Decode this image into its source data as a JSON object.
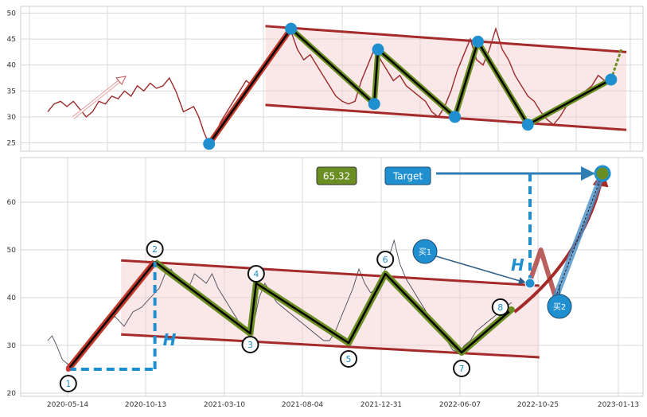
{
  "chart_data": [
    {
      "type": "line",
      "title": "",
      "xlabel": "",
      "ylabel": "",
      "ylim": [
        24,
        51
      ],
      "yticks": [
        25,
        30,
        35,
        40,
        45,
        50
      ],
      "grid": true,
      "series": [
        {
          "role": "price",
          "color": "#9b2b2b",
          "points": [
            [
              0,
              31
            ],
            [
              5,
              32.5
            ],
            [
              10,
              33
            ],
            [
              15,
              32
            ],
            [
              20,
              33
            ],
            [
              25,
              31.5
            ],
            [
              30,
              30
            ],
            [
              35,
              31
            ],
            [
              40,
              33
            ],
            [
              45,
              32.5
            ],
            [
              50,
              34
            ],
            [
              55,
              33.5
            ],
            [
              60,
              35
            ],
            [
              65,
              34
            ],
            [
              70,
              36
            ],
            [
              75,
              35
            ],
            [
              80,
              36.5
            ],
            [
              85,
              35.5
            ],
            [
              90,
              36
            ],
            [
              95,
              37.5
            ],
            [
              100,
              35
            ],
            [
              103,
              33
            ],
            [
              106,
              31
            ],
            [
              110,
              31.5
            ],
            [
              114,
              32
            ],
            [
              118,
              30
            ],
            [
              122,
              27
            ],
            [
              126,
              24.8
            ],
            [
              130,
              26
            ],
            [
              135,
              29
            ],
            [
              140,
              31
            ],
            [
              145,
              33
            ],
            [
              150,
              35
            ],
            [
              155,
              37
            ],
            [
              160,
              36
            ],
            [
              165,
              38
            ],
            [
              170,
              40
            ],
            [
              175,
              42
            ],
            [
              180,
              44
            ],
            [
              185,
              46
            ],
            [
              190,
              46.5
            ],
            [
              195,
              43
            ],
            [
              200,
              41
            ],
            [
              205,
              42
            ],
            [
              210,
              40
            ],
            [
              215,
              38
            ],
            [
              220,
              36
            ],
            [
              225,
              34
            ],
            [
              230,
              33
            ],
            [
              235,
              32.5
            ],
            [
              240,
              33
            ],
            [
              245,
              37
            ],
            [
              250,
              40
            ],
            [
              255,
              43
            ],
            [
              260,
              41
            ],
            [
              265,
              39
            ],
            [
              270,
              37
            ],
            [
              275,
              38
            ],
            [
              280,
              36
            ],
            [
              285,
              35
            ],
            [
              290,
              34
            ],
            [
              295,
              33
            ],
            [
              300,
              31
            ],
            [
              305,
              30
            ],
            [
              310,
              32
            ],
            [
              315,
              35
            ],
            [
              320,
              39
            ],
            [
              325,
              42
            ],
            [
              330,
              45
            ],
            [
              335,
              41
            ],
            [
              340,
              40
            ],
            [
              345,
              43
            ],
            [
              350,
              47
            ],
            [
              355,
              43
            ],
            [
              360,
              41
            ],
            [
              365,
              38
            ],
            [
              370,
              36
            ],
            [
              375,
              34
            ],
            [
              380,
              33
            ],
            [
              385,
              31
            ],
            [
              390,
              29.5
            ],
            [
              395,
              28.5
            ],
            [
              400,
              30
            ],
            [
              405,
              32
            ],
            [
              410,
              33
            ],
            [
              415,
              34
            ],
            [
              420,
              35
            ],
            [
              425,
              36
            ],
            [
              430,
              38
            ],
            [
              435,
              37
            ],
            [
              440,
              37.2
            ]
          ]
        },
        {
          "role": "zigzag",
          "color": "#000000",
          "highlight_color": "#6b8e23",
          "points": [
            [
              126,
              24.8
            ],
            [
              190,
              47
            ],
            [
              255,
              32.5
            ],
            [
              258,
              43
            ],
            [
              318,
              30
            ],
            [
              336,
              44.5
            ],
            [
              375,
              28.5
            ],
            [
              440,
              37.2
            ]
          ]
        },
        {
          "role": "projection",
          "color": "#6b8e23",
          "points": [
            [
              440,
              37.2
            ],
            [
              448,
              43
            ]
          ]
        },
        {
          "role": "channel-upper",
          "color": "#a52a2a",
          "points": [
            [
              170,
              47.5
            ],
            [
              452,
              42.5
            ]
          ]
        },
        {
          "role": "channel-lower",
          "color": "#a52a2a",
          "points": [
            [
              170,
              32.3
            ],
            [
              452,
              27.5
            ]
          ]
        }
      ],
      "markers": [
        [
          126,
          24.8
        ],
        [
          190,
          47
        ],
        [
          255,
          32.5
        ],
        [
          258,
          43
        ],
        [
          318,
          30
        ],
        [
          336,
          44.5
        ],
        [
          375,
          28.5
        ],
        [
          440,
          37.2
        ]
      ],
      "shaded_channel": true
    },
    {
      "type": "line",
      "title": "",
      "xlabel": "",
      "ylabel": "",
      "ylim": [
        20,
        69
      ],
      "yticks": [
        20,
        30,
        40,
        50,
        60
      ],
      "x_tick_labels": [
        "2020-05-14",
        "2020-10-13",
        "2021-03-10",
        "2021-08-04",
        "2021-12-31",
        "2022-06-07",
        "2022-10-25",
        "2023-01-13"
      ],
      "grid": true,
      "series": [
        {
          "role": "price",
          "color": "#4a4a5a",
          "points": [
            [
              0,
              31
            ],
            [
              3,
              32
            ],
            [
              6,
              30
            ],
            [
              10,
              27
            ],
            [
              14,
              26
            ],
            [
              18,
              27
            ],
            [
              22,
              29
            ],
            [
              28,
              31
            ],
            [
              34,
              33
            ],
            [
              40,
              35
            ],
            [
              46,
              36
            ],
            [
              52,
              34
            ],
            [
              58,
              37
            ],
            [
              64,
              38
            ],
            [
              70,
              40
            ],
            [
              76,
              42
            ],
            [
              80,
              45
            ],
            [
              84,
              46
            ],
            [
              88,
              44
            ],
            [
              92,
              43
            ],
            [
              96,
              42
            ],
            [
              100,
              45
            ],
            [
              104,
              44
            ],
            [
              108,
              43
            ],
            [
              112,
              45
            ],
            [
              116,
              42
            ],
            [
              120,
              40
            ],
            [
              124,
              38
            ],
            [
              128,
              36
            ],
            [
              132,
              34
            ],
            [
              136,
              33
            ],
            [
              140,
              34
            ],
            [
              144,
              40
            ],
            [
              148,
              43
            ],
            [
              152,
              41
            ],
            [
              156,
              39
            ],
            [
              160,
              38
            ],
            [
              164,
              37
            ],
            [
              168,
              36
            ],
            [
              172,
              35
            ],
            [
              176,
              34
            ],
            [
              180,
              33
            ],
            [
              184,
              32
            ],
            [
              188,
              31
            ],
            [
              192,
              31
            ],
            [
              196,
              33
            ],
            [
              200,
              36
            ],
            [
              204,
              39
            ],
            [
              208,
              42
            ],
            [
              212,
              46
            ],
            [
              216,
              43
            ],
            [
              220,
              41
            ],
            [
              224,
              42
            ],
            [
              228,
              44
            ],
            [
              232,
              48
            ],
            [
              236,
              52
            ],
            [
              240,
              47
            ],
            [
              244,
              44
            ],
            [
              248,
              42
            ],
            [
              252,
              40
            ],
            [
              256,
              38
            ],
            [
              260,
              36
            ],
            [
              264,
              35
            ],
            [
              268,
              33
            ],
            [
              272,
              31
            ],
            [
              276,
              29
            ],
            [
              280,
              28.5
            ],
            [
              284,
              30
            ],
            [
              288,
              31
            ],
            [
              292,
              33
            ],
            [
              296,
              34
            ],
            [
              300,
              35
            ],
            [
              304,
              36
            ],
            [
              308,
              37
            ],
            [
              312,
              38
            ],
            [
              316,
              39
            ]
          ]
        },
        {
          "role": "zigzag",
          "color": "#000000",
          "highlight_color": "#6b8e23",
          "points": [
            [
              14,
              25
            ],
            [
              73,
              47.5
            ],
            [
              138,
              32.5
            ],
            [
              142,
              43
            ],
            [
              205,
              30.5
            ],
            [
              230,
              45
            ],
            [
              282,
              28.5
            ],
            [
              316,
              37.5
            ]
          ]
        },
        {
          "role": "channel-upper",
          "color": "#a52a2a",
          "points": [
            [
              50,
              47.8
            ],
            [
              335,
              42.5
            ]
          ]
        },
        {
          "role": "channel-lower",
          "color": "#a52a2a",
          "points": [
            [
              50,
              32.3
            ],
            [
              335,
              27.5
            ]
          ]
        },
        {
          "role": "forecast-zigzag",
          "color": "#a52a2a",
          "points": [
            [
              328,
              43
            ],
            [
              336,
              50
            ],
            [
              346,
              40
            ]
          ]
        },
        {
          "role": "target-arrow",
          "color": "#4a90c8",
          "points": [
            [
              346,
              40
            ],
            [
              378,
              66
            ]
          ]
        },
        {
          "role": "breakout-curve",
          "color": "#a52a2a",
          "points": [
            [
              318,
              37
            ],
            [
              340,
              40
            ],
            [
              360,
              47
            ],
            [
              375,
              60
            ],
            [
              378,
              66
            ]
          ]
        }
      ],
      "pattern_points": [
        {
          "label": "1",
          "x": 14,
          "y": 25
        },
        {
          "label": "2",
          "x": 73,
          "y": 47.5
        },
        {
          "label": "3",
          "x": 138,
          "y": 32.5
        },
        {
          "label": "4",
          "x": 142,
          "y": 43
        },
        {
          "label": "5",
          "x": 205,
          "y": 30.5
        },
        {
          "label": "6",
          "x": 230,
          "y": 45
        },
        {
          "label": "7",
          "x": 282,
          "y": 28.5
        },
        {
          "label": "8",
          "x": 316,
          "y": 37.5
        }
      ],
      "height_marker_label": "H",
      "target_value_label": "65.32",
      "target_label": "Target",
      "buy1_label": "买1",
      "buy2_label": "买2"
    }
  ]
}
